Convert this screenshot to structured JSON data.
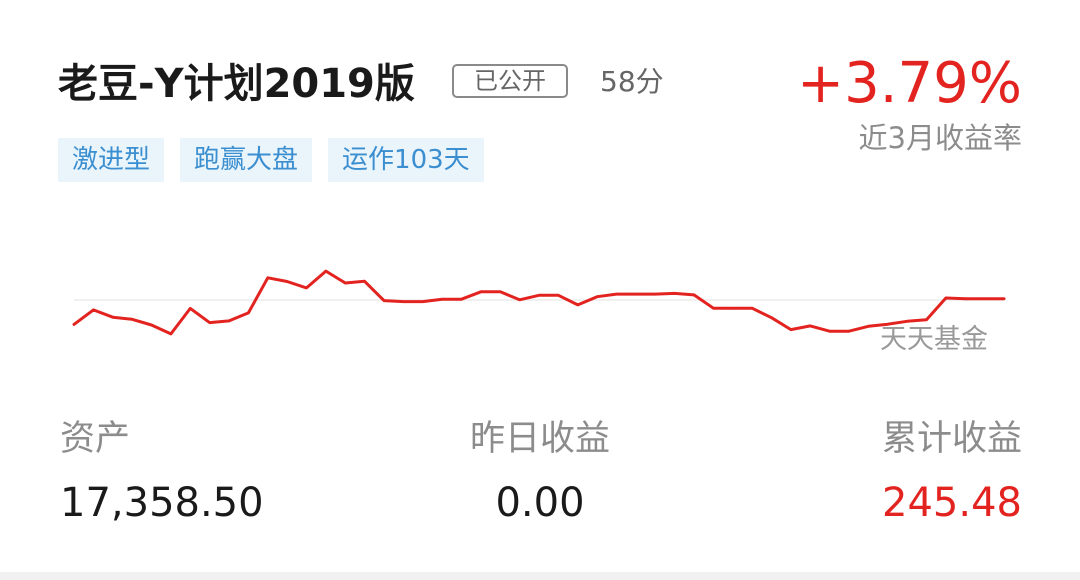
{
  "plan": {
    "name": "老豆-Y计划2019版",
    "public_badge": "已公开",
    "score": "58分",
    "return_rate": "+3.79%",
    "return_label": "近3月收益率",
    "tags": [
      "激进型",
      "跑赢大盘",
      "运作103天"
    ],
    "watermark": "天天基金"
  },
  "colors": {
    "accent_red": "#e3231f",
    "tag_blue": "#3b8fd0",
    "tag_bg": "#eaf4fb"
  },
  "chart_data": {
    "type": "line",
    "series": [
      {
        "values": [
          -1.25,
          -0.51,
          -0.88,
          -0.99,
          -1.28,
          -1.74,
          -0.43,
          -1.16,
          -1.07,
          -0.66,
          1.14,
          0.95,
          0.62,
          1.48,
          0.87,
          0.96,
          -0.03,
          -0.08,
          -0.08,
          0.04,
          0.04,
          0.42,
          0.42,
          0.01,
          0.24,
          0.24,
          -0.25,
          0.17,
          0.3,
          0.3,
          0.3,
          0.34,
          0.26,
          -0.42,
          -0.42,
          -0.42,
          -0.91,
          -1.52,
          -1.33,
          -1.6,
          -1.6,
          -1.35,
          -1.24,
          -1.09,
          -1.01,
          0.1,
          0.06,
          0.06,
          0.06
        ]
      }
    ],
    "baseline": 0,
    "grid": false,
    "legend": "none"
  },
  "stats": {
    "assets_label": "资产",
    "assets_value": "17,358.50",
    "yesterday_label": "昨日收益",
    "yesterday_value": "0.00",
    "total_label": "累计收益",
    "total_value": "245.48"
  }
}
